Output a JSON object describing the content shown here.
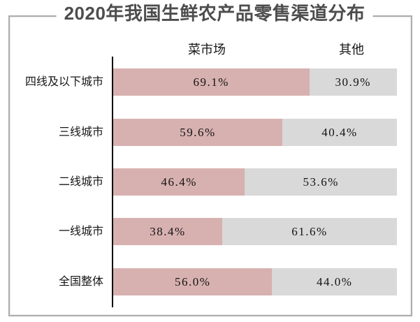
{
  "title": "2020年我国生鲜农产品零售渠道分布",
  "legend": {
    "market": "菜市场",
    "other": "其他"
  },
  "colors": {
    "market": "#d7b1b0",
    "other": "#d9d9d9",
    "axis": "#000000",
    "border": "#adadad",
    "title_text": "#4d4d4d"
  },
  "chart_data": {
    "type": "bar",
    "orientation": "horizontal-stacked",
    "title": "2020年我国生鲜农产品零售渠道分布",
    "categories": [
      "四线及以下城市",
      "三线城市",
      "二线城市",
      "一线城市",
      "全国整体"
    ],
    "series": [
      {
        "name": "菜市场",
        "values": [
          69.1,
          59.6,
          46.4,
          38.4,
          56.0
        ]
      },
      {
        "name": "其他",
        "values": [
          30.9,
          40.4,
          53.6,
          61.6,
          44.0
        ]
      }
    ],
    "value_format": "percent",
    "xlim": [
      0,
      100
    ],
    "legend_position": "top",
    "grid": false
  },
  "rows": [
    {
      "label": "四线及以下城市",
      "market": "69.1%",
      "other": "30.9%",
      "market_pct": 69.1,
      "other_pct": 30.9
    },
    {
      "label": "三线城市",
      "market": "59.6%",
      "other": "40.4%",
      "market_pct": 59.6,
      "other_pct": 40.4
    },
    {
      "label": "二线城市",
      "market": "46.4%",
      "other": "53.6%",
      "market_pct": 46.4,
      "other_pct": 53.6
    },
    {
      "label": "一线城市",
      "market": "38.4%",
      "other": "61.6%",
      "market_pct": 38.4,
      "other_pct": 61.6
    },
    {
      "label": "全国整体",
      "market": "56.0%",
      "other": "44.0%",
      "market_pct": 56.0,
      "other_pct": 44.0
    }
  ]
}
